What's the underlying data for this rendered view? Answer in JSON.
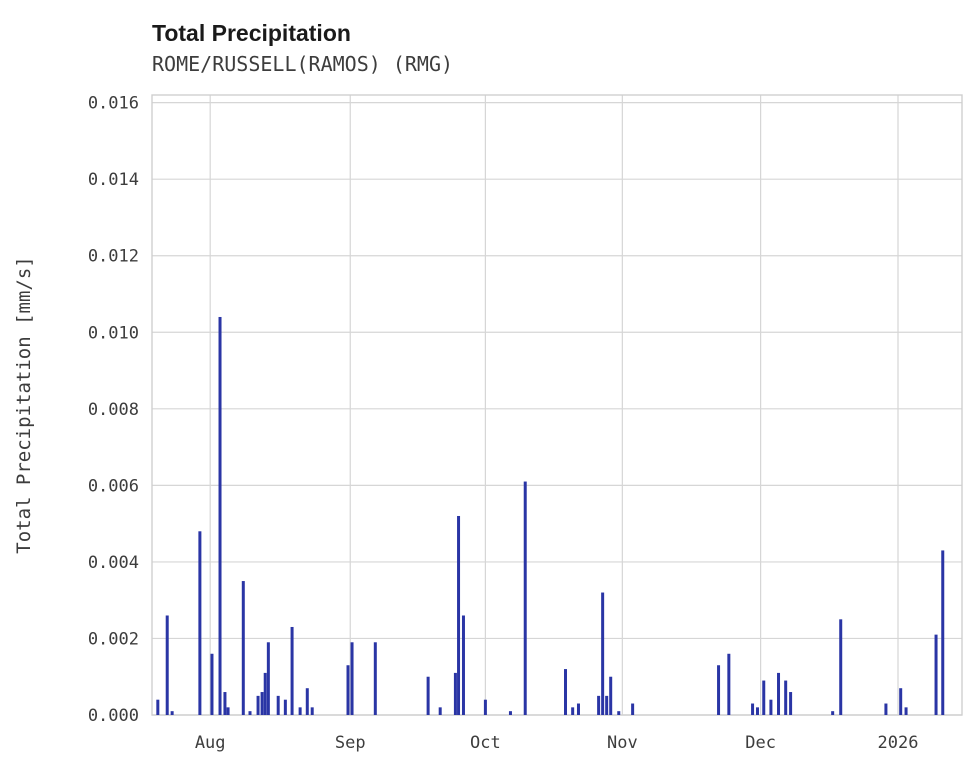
{
  "header": {
    "title": "Total Precipitation",
    "subtitle": "ROME/RUSSELL(RAMOS) (RMG)"
  },
  "chart_data": {
    "type": "bar",
    "title": "Total Precipitation",
    "subtitle": "ROME/RUSSELL(RAMOS) (RMG)",
    "xlabel": "",
    "ylabel": "Total Precipitation [mm/s]",
    "ylim": [
      0,
      0.0162
    ],
    "grid": true,
    "legend": "none",
    "bar_color": "#2a35a5",
    "grid_color": "#d6d6d6",
    "axis_border_color": "#cfcfcf",
    "yticks": [
      {
        "value": 0.0,
        "label": "0.000"
      },
      {
        "value": 0.002,
        "label": "0.002"
      },
      {
        "value": 0.004,
        "label": "0.004"
      },
      {
        "value": 0.006,
        "label": "0.006"
      },
      {
        "value": 0.008,
        "label": "0.008"
      },
      {
        "value": 0.01,
        "label": "0.010"
      },
      {
        "value": 0.012,
        "label": "0.012"
      },
      {
        "value": 0.014,
        "label": "0.014"
      },
      {
        "value": 0.016,
        "label": "0.016"
      }
    ],
    "x_axis": {
      "unit": "days from plot start (mid-July)",
      "domain": [
        0,
        181
      ]
    },
    "xticks": [
      {
        "pos": 13.0,
        "label": "Aug"
      },
      {
        "pos": 44.3,
        "label": "Sep"
      },
      {
        "pos": 74.5,
        "label": "Oct"
      },
      {
        "pos": 105.1,
        "label": "Nov"
      },
      {
        "pos": 136.0,
        "label": "Dec"
      },
      {
        "pos": 166.7,
        "label": "2026"
      }
    ],
    "points": [
      [
        1.3,
        0.0004
      ],
      [
        3.4,
        0.0026
      ],
      [
        4.5,
        0.0001
      ],
      [
        10.7,
        0.0048
      ],
      [
        13.4,
        0.0016
      ],
      [
        15.2,
        0.0104
      ],
      [
        16.3,
        0.0006
      ],
      [
        17.0,
        0.0002
      ],
      [
        20.4,
        0.0035
      ],
      [
        21.9,
        0.0001
      ],
      [
        23.7,
        0.0005
      ],
      [
        24.6,
        0.0006
      ],
      [
        25.3,
        0.0011
      ],
      [
        26.0,
        0.0019
      ],
      [
        28.2,
        0.0005
      ],
      [
        29.8,
        0.0004
      ],
      [
        31.3,
        0.0023
      ],
      [
        33.1,
        0.0002
      ],
      [
        34.7,
        0.0007
      ],
      [
        35.8,
        0.0002
      ],
      [
        43.8,
        0.0013
      ],
      [
        44.7,
        0.0019
      ],
      [
        49.9,
        0.0019
      ],
      [
        61.7,
        0.001
      ],
      [
        64.4,
        0.0002
      ],
      [
        67.8,
        0.0011
      ],
      [
        68.5,
        0.0052
      ],
      [
        69.6,
        0.0026
      ],
      [
        74.5,
        0.0004
      ],
      [
        80.1,
        0.0001
      ],
      [
        83.4,
        0.0061
      ],
      [
        92.4,
        0.0012
      ],
      [
        94.0,
        0.0002
      ],
      [
        95.3,
        0.0003
      ],
      [
        99.8,
        0.0005
      ],
      [
        100.7,
        0.0032
      ],
      [
        101.6,
        0.0005
      ],
      [
        102.5,
        0.001
      ],
      [
        104.3,
        0.0001
      ],
      [
        107.4,
        0.0003
      ],
      [
        126.6,
        0.0013
      ],
      [
        128.9,
        0.0016
      ],
      [
        134.2,
        0.0003
      ],
      [
        135.3,
        0.0002
      ],
      [
        136.7,
        0.0009
      ],
      [
        138.3,
        0.0004
      ],
      [
        140.0,
        0.0011
      ],
      [
        141.6,
        0.0009
      ],
      [
        142.7,
        0.0006
      ],
      [
        152.1,
        0.0001
      ],
      [
        153.9,
        0.0025
      ],
      [
        164.0,
        0.0003
      ],
      [
        167.3,
        0.0007
      ],
      [
        168.5,
        0.0002
      ],
      [
        175.2,
        0.0021
      ],
      [
        176.7,
        0.0043
      ]
    ]
  }
}
